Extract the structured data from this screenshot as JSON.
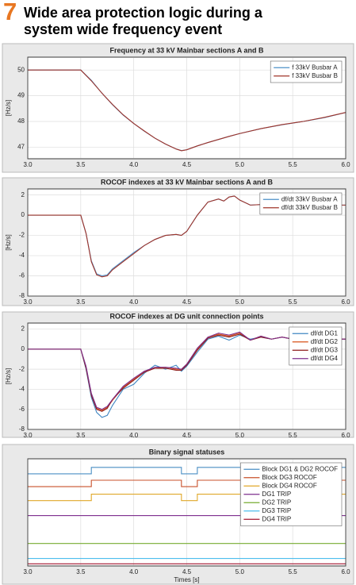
{
  "header": {
    "number": "7",
    "title": [
      "Wide area protection logic during a",
      "system wide frequency event"
    ]
  },
  "chart_data": [
    {
      "type": "line",
      "title": "Frequency at 33 kV Mainbar sections A and B",
      "y_label": "[Hz/s]",
      "x": [
        3.0,
        3.5,
        3.6,
        3.7,
        3.8,
        3.9,
        4.0,
        4.1,
        4.2,
        4.3,
        4.4,
        4.45,
        4.5,
        4.6,
        4.7,
        4.8,
        4.9,
        5.0,
        5.2,
        5.4,
        5.6,
        5.8,
        6.0
      ],
      "series": [
        {
          "name": "f 33kV Busbar A",
          "color": "#4d90c8",
          "values": [
            50,
            50,
            49.6,
            49.1,
            48.65,
            48.25,
            47.92,
            47.62,
            47.35,
            47.12,
            46.93,
            46.87,
            46.9,
            47.05,
            47.18,
            47.3,
            47.42,
            47.53,
            47.72,
            47.87,
            48.0,
            48.15,
            48.35
          ]
        },
        {
          "name": "f 33kV Busbar B",
          "color": "#a0342a",
          "values": [
            50,
            50,
            49.58,
            49.1,
            48.66,
            48.26,
            47.92,
            47.63,
            47.35,
            47.12,
            46.93,
            46.86,
            46.9,
            47.05,
            47.18,
            47.3,
            47.42,
            47.53,
            47.72,
            47.88,
            48.0,
            48.16,
            48.35
          ]
        }
      ],
      "xlim": [
        3.0,
        6.0
      ],
      "xticks": [
        {
          "value": 3,
          "label": "3.0"
        },
        3.5,
        {
          "value": 4,
          "label": "4.0"
        },
        4.5,
        {
          "value": 5,
          "label": "5.0"
        },
        5.5,
        {
          "value": 6,
          "label": "6.0"
        }
      ],
      "ylim": [
        46.55,
        50.5
      ],
      "yticks": [
        47,
        48,
        49,
        50
      ],
      "grid": true,
      "legend": "upper right"
    },
    {
      "type": "line",
      "title": "ROCOF indexes at 33 kV Mainbar sections A and B",
      "y_label": "[Hz/s]",
      "x": [
        3.0,
        3.5,
        3.55,
        3.6,
        3.65,
        3.7,
        3.75,
        3.8,
        3.9,
        4.0,
        4.1,
        4.2,
        4.3,
        4.4,
        4.45,
        4.5,
        4.6,
        4.7,
        4.8,
        4.85,
        4.9,
        4.95,
        5.0,
        5.1,
        5.3,
        5.5,
        5.7,
        6.0
      ],
      "series": [
        {
          "name": "df/dt 33kV Busbar A",
          "color": "#4d90c8",
          "values": [
            0,
            0,
            -1.8,
            -4.5,
            -5.8,
            -6.0,
            -5.9,
            -5.3,
            -4.5,
            -3.7,
            -3.0,
            -2.4,
            -2.0,
            -1.9,
            -2.0,
            -1.6,
            0.0,
            1.3,
            1.6,
            1.4,
            1.8,
            1.9,
            1.5,
            1.0,
            1.1,
            1.0,
            1.0,
            1.0
          ]
        },
        {
          "name": "df/dt 33kV Busbar B",
          "color": "#a0342a",
          "values": [
            0,
            0,
            -1.8,
            -4.6,
            -5.9,
            -6.1,
            -6.0,
            -5.4,
            -4.6,
            -3.8,
            -3.0,
            -2.4,
            -2.0,
            -1.9,
            -2.0,
            -1.6,
            0.0,
            1.3,
            1.6,
            1.4,
            1.8,
            1.9,
            1.5,
            1.0,
            1.1,
            1.0,
            1.0,
            1.0
          ]
        }
      ],
      "xlim": [
        3.0,
        6.0
      ],
      "xticks": [
        {
          "value": 3,
          "label": "3.0"
        },
        3.5,
        {
          "value": 4,
          "label": "4.0"
        },
        4.5,
        {
          "value": 5,
          "label": "5.0"
        },
        5.5,
        {
          "value": 6,
          "label": "6.0"
        }
      ],
      "ylim": [
        -8,
        2.6
      ],
      "yticks": [
        -8,
        -6,
        -4,
        -2,
        0,
        2
      ],
      "grid": true,
      "legend": "upper right"
    },
    {
      "type": "line",
      "title": "ROCOF indexes at DG unit connection points",
      "y_label": "[Hz/s]",
      "x": [
        3.0,
        3.5,
        3.55,
        3.6,
        3.65,
        3.7,
        3.75,
        3.8,
        3.9,
        4.0,
        4.1,
        4.2,
        4.3,
        4.4,
        4.45,
        4.5,
        4.6,
        4.7,
        4.8,
        4.9,
        5.0,
        5.1,
        5.2,
        5.3,
        5.4,
        5.5,
        5.6,
        5.8,
        6.0
      ],
      "series": [
        {
          "name": "df/dt DG1",
          "color": "#3f86c2",
          "values": [
            0,
            0,
            -2.0,
            -4.8,
            -6.3,
            -6.8,
            -6.6,
            -5.6,
            -4.0,
            -3.5,
            -2.4,
            -1.6,
            -2.0,
            -1.6,
            -2.2,
            -1.7,
            -0.3,
            1.0,
            1.3,
            0.9,
            1.4,
            1.0,
            1.2,
            1.0,
            1.2,
            1.0,
            1.1,
            1.0,
            1.0
          ]
        },
        {
          "name": "df/dt DG2",
          "color": "#d95319",
          "values": [
            0,
            0,
            -1.8,
            -4.5,
            -5.9,
            -6.1,
            -5.8,
            -5.1,
            -3.8,
            -3.0,
            -2.2,
            -1.9,
            -1.8,
            -2.0,
            -2.0,
            -1.5,
            0.0,
            1.2,
            1.5,
            1.3,
            1.6,
            0.9,
            1.3,
            1.0,
            1.2,
            1.0,
            1.1,
            1.0,
            1.0
          ]
        },
        {
          "name": "df/dt DG3",
          "color": "#8b1a1a",
          "values": [
            0,
            0,
            -1.9,
            -4.6,
            -6.0,
            -6.2,
            -5.9,
            -5.0,
            -3.9,
            -3.1,
            -2.3,
            -1.9,
            -1.9,
            -2.1,
            -2.1,
            -1.6,
            -0.1,
            1.1,
            1.4,
            1.2,
            1.5,
            0.9,
            1.2,
            1.0,
            1.2,
            1.0,
            1.1,
            1.0,
            1.0
          ]
        },
        {
          "name": "df/dt DG4",
          "color": "#7e2f8e",
          "values": [
            0,
            0,
            -1.7,
            -4.4,
            -5.8,
            -6.0,
            -5.7,
            -5.0,
            -3.7,
            -2.9,
            -2.2,
            -1.8,
            -1.8,
            -1.9,
            -2.0,
            -1.5,
            0.1,
            1.2,
            1.6,
            1.4,
            1.7,
            0.9,
            1.3,
            1.0,
            1.2,
            1.0,
            1.1,
            1.0,
            1.0
          ]
        }
      ],
      "xlim": [
        3.0,
        6.0
      ],
      "xticks": [
        {
          "value": 3,
          "label": "3.0"
        },
        3.5,
        {
          "value": 4,
          "label": "4.0"
        },
        4.5,
        {
          "value": 5,
          "label": "5.0"
        },
        5.5,
        {
          "value": 6,
          "label": "6.0"
        }
      ],
      "ylim": [
        -8,
        2.6
      ],
      "yticks": [
        -8,
        -6,
        -4,
        -2,
        0,
        2
      ],
      "grid": true,
      "legend": "upper right"
    },
    {
      "type": "line",
      "title": "Binary signal statuses",
      "x_label": "Times [s]",
      "x": [
        3.0,
        3.6,
        3.6,
        4.45,
        4.45,
        4.6,
        4.6,
        6.0
      ],
      "series": [
        {
          "name": "Block DG1 & DG2 ROCOF",
          "color": "#4a8fc4",
          "values": [
            8.6,
            8.6,
            9.2,
            9.2,
            8.6,
            8.6,
            9.2,
            9.2
          ]
        },
        {
          "name": "Block DG3 ROCOF",
          "color": "#c8502a",
          "values": [
            7.4,
            7.4,
            8.0,
            8.0,
            7.4,
            7.4,
            8.0,
            8.0
          ]
        },
        {
          "name": "Block DG4 ROCOF",
          "color": "#e0a829",
          "values": [
            6.1,
            6.1,
            6.7,
            6.7,
            6.1,
            6.1,
            6.7,
            6.7
          ]
        },
        {
          "name": "DG1 TRIP",
          "color": "#7e2f8e",
          "values": [
            4.7,
            4.7,
            4.7,
            4.7,
            4.7,
            4.7,
            4.7,
            4.7
          ]
        },
        {
          "name": "DG2 TRIP",
          "color": "#77ac30",
          "values": [
            2.1,
            2.1,
            2.1,
            2.1,
            2.1,
            2.1,
            2.1,
            2.1
          ]
        },
        {
          "name": "DG3 TRIP",
          "color": "#4dbeee",
          "values": [
            0.7,
            0.7,
            0.7,
            0.7,
            0.7,
            0.7,
            0.7,
            0.7
          ]
        },
        {
          "name": "DG4 TRIP",
          "color": "#a2142f",
          "values": [
            0.2,
            0.2,
            0.2,
            0.2,
            0.2,
            0.2,
            0.2,
            0.2
          ]
        }
      ],
      "xlim": [
        3.0,
        6.0
      ],
      "xticks": [
        {
          "value": 3,
          "label": "3.0"
        },
        3.5,
        {
          "value": 4,
          "label": "4.0"
        },
        4.5,
        {
          "value": 5,
          "label": "5.0"
        },
        5.5,
        {
          "value": 6,
          "label": "6.0"
        }
      ],
      "ylim": [
        0,
        10
      ],
      "grid": true,
      "legend": "upper right"
    }
  ]
}
